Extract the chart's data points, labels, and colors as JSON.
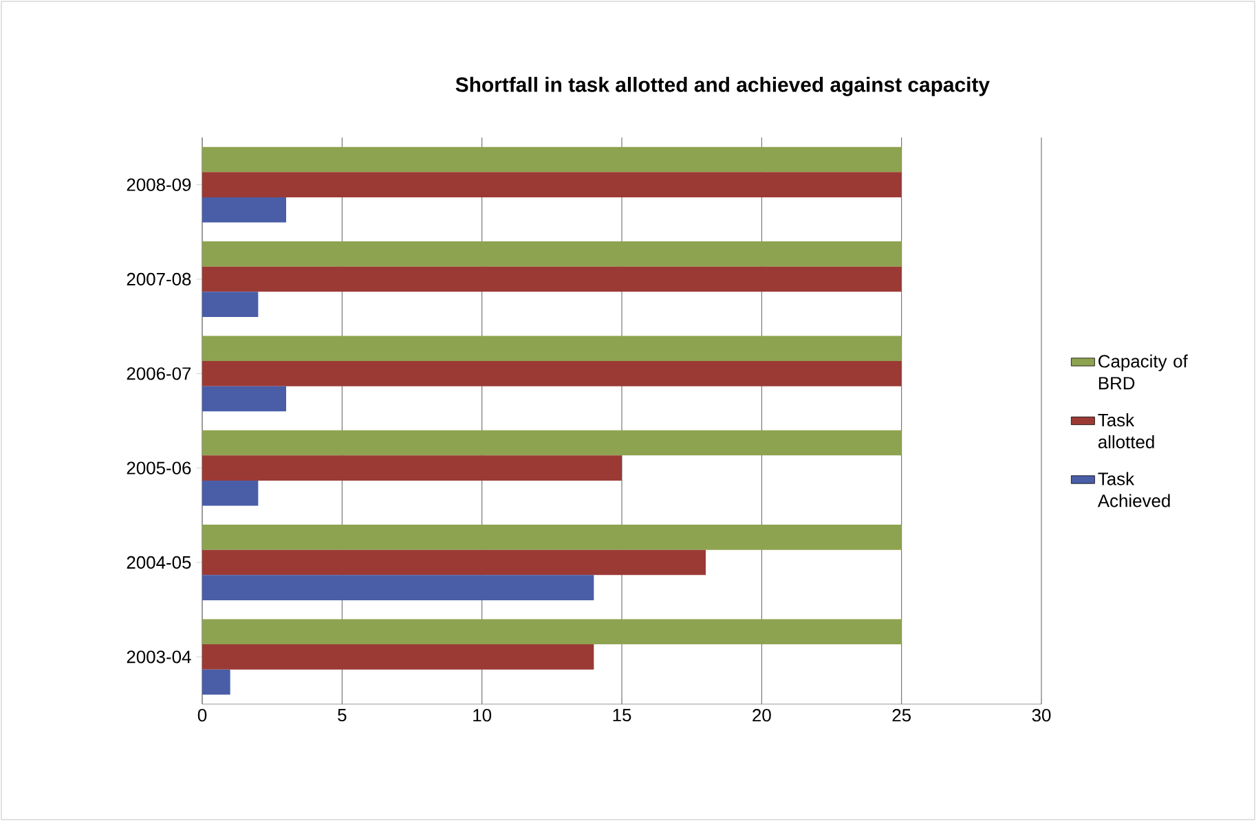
{
  "chart_data": {
    "type": "bar",
    "orientation": "horizontal",
    "title": "Shortfall in task allotted and achieved against capacity",
    "categories": [
      "2008-09",
      "2007-08",
      "2006-07",
      "2005-06",
      "2004-05",
      "2003-04"
    ],
    "series": [
      {
        "name": "Capacity of BRD",
        "color": "#8ea34f",
        "values": [
          25,
          25,
          25,
          25,
          25,
          25
        ]
      },
      {
        "name": "Task allotted",
        "color": "#9b3a35",
        "values": [
          25,
          25,
          25,
          15,
          18,
          14
        ]
      },
      {
        "name": "Task Achieved",
        "color": "#4a5ea8",
        "values": [
          3,
          2,
          3,
          2,
          14,
          1
        ]
      }
    ],
    "xlim": [
      0,
      30
    ],
    "xticks": [
      0,
      5,
      10,
      15,
      20,
      25,
      30
    ],
    "grid": "x",
    "legend": "right"
  }
}
